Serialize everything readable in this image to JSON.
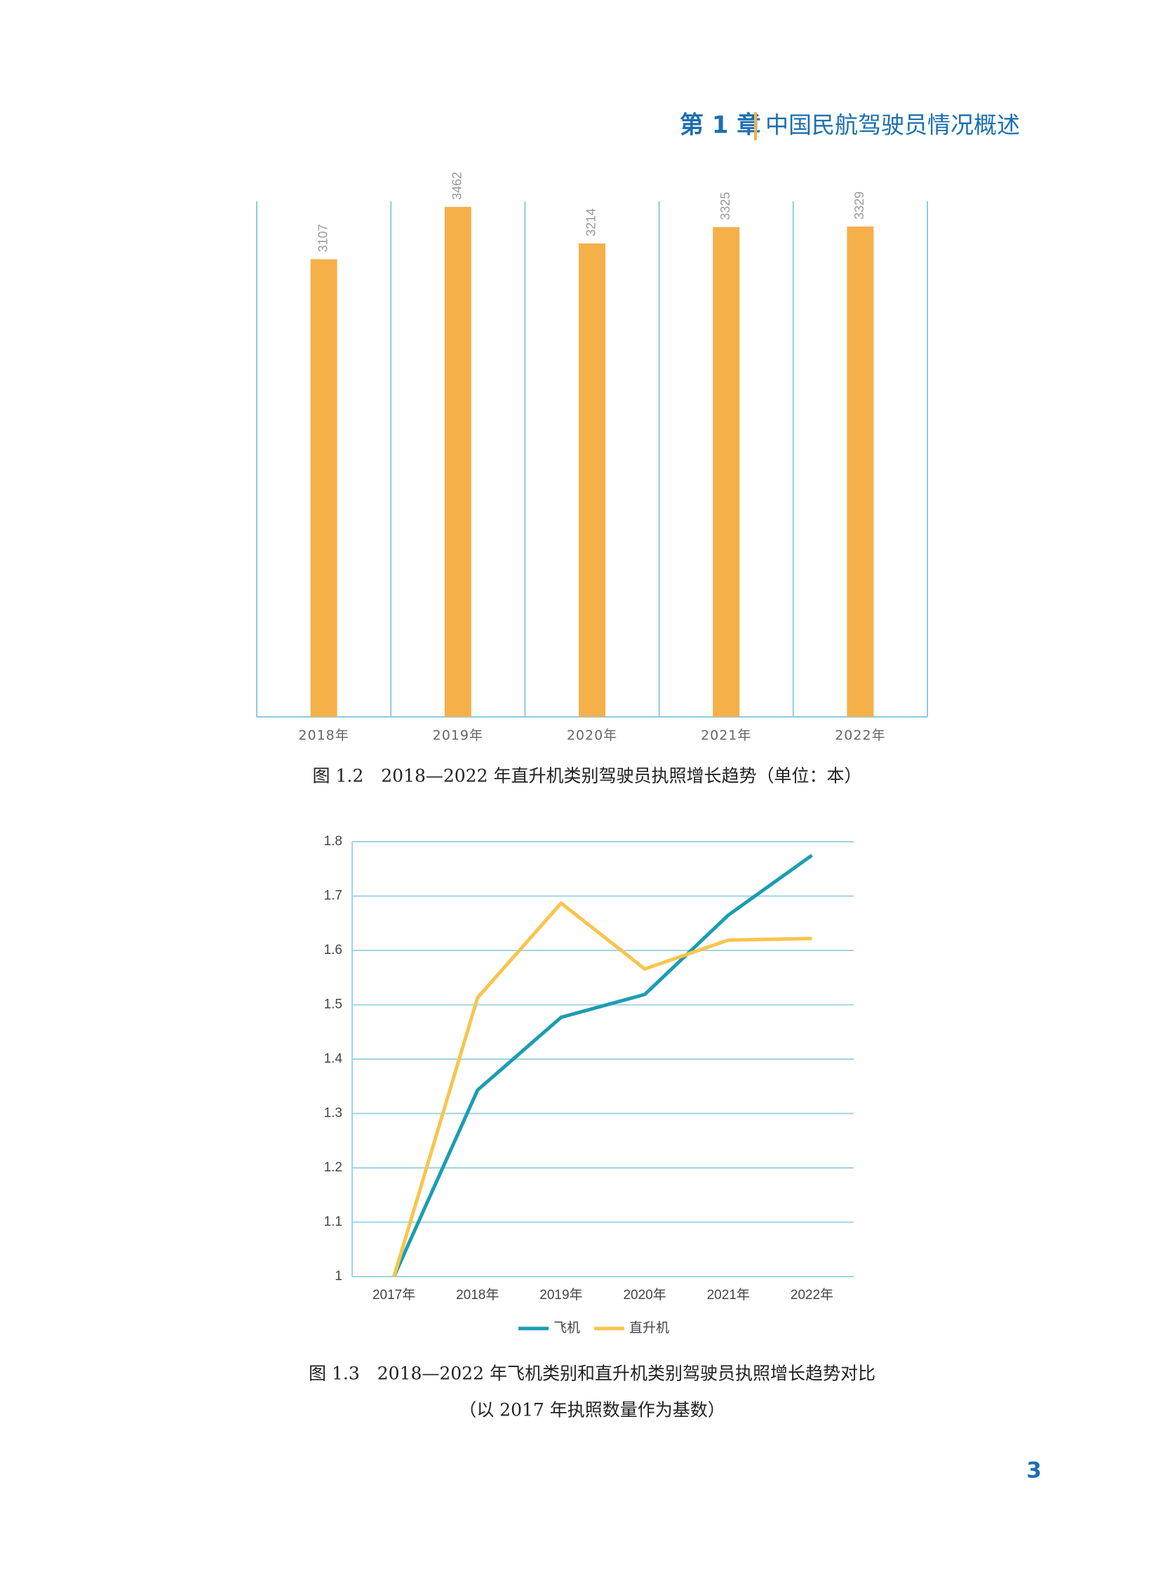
{
  "header": {
    "chapter": "第 1 章",
    "title": "中国民航驾驶员情况概述"
  },
  "page_number": "3",
  "chart_data": [
    {
      "type": "bar",
      "title": "图 1.2　2018—2022 年直升机类别驾驶员执照增长趋势（单位：本）",
      "categories": [
        "2018年",
        "2019年",
        "2020年",
        "2021年",
        "2022年"
      ],
      "values": [
        3107,
        3462,
        3214,
        3325,
        3329
      ],
      "color": "#f5b04a",
      "ylim": [
        0,
        3500
      ]
    },
    {
      "type": "line",
      "title": "图 1.3　2018—2022 年飞机类别和直升机类别驾驶员执照增长趋势对比",
      "subtitle": "（以 2017 年执照数量作为基数）",
      "categories": [
        "2017年",
        "2018年",
        "2019年",
        "2020年",
        "2021年",
        "2022年"
      ],
      "series": [
        {
          "name": "飞机",
          "color": "#1b9db2",
          "values": [
            1,
            1.343,
            1.477,
            1.519,
            1.665,
            1.775
          ]
        },
        {
          "name": "直升机",
          "color": "#f7c54e",
          "values": [
            1,
            1.513,
            1.687,
            1.566,
            1.619,
            1.622
          ]
        }
      ],
      "ylim": [
        1,
        1.8
      ],
      "yticks": [
        1,
        1.1,
        1.2,
        1.3,
        1.4,
        1.5,
        1.6,
        1.7,
        1.8
      ],
      "grid": true,
      "legend": "bottom"
    }
  ]
}
